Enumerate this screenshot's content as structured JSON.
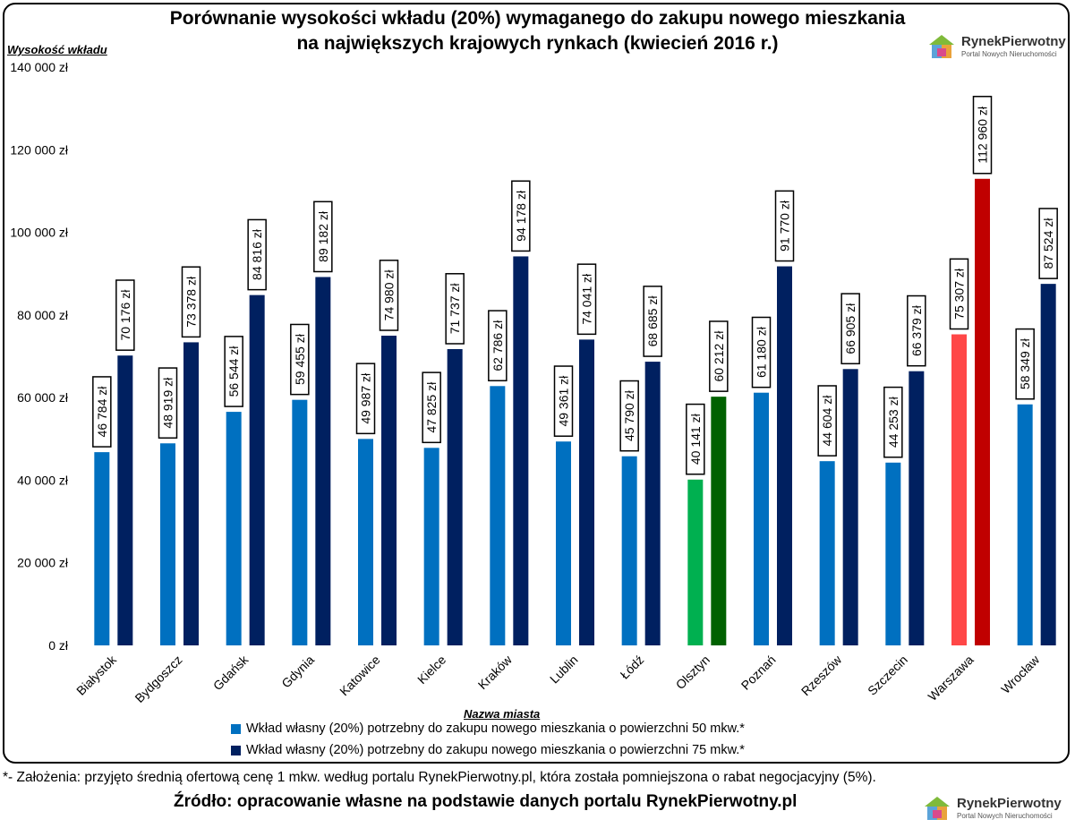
{
  "title_line1": "Porównanie wysokości wkładu (20%) wymaganego do zakupu nowego mieszkania",
  "title_line2": "na największych krajowych rynkach (kwiecień 2016 r.)",
  "footnote": "*- Założenia: przyjęto średnią ofertową cenę 1 mkw. według portalu RynekPierwotny.pl, która została pomniejszona o rabat negocjacyjny (5%).",
  "source": "Źródło: opracowanie własne na podstawie danych portalu RynekPierwotny.pl",
  "logo": {
    "name": "RynekPierwotny",
    "tagline": "Portal Nowych Nieruchomości",
    "icon": "house-icon"
  },
  "colors": {
    "series_50": "#0070C0",
    "series_75": "#002060",
    "olsztyn_50": "#00B050",
    "olsztyn_75": "#006100",
    "warszawa_50": "#FF4747",
    "warszawa_75": "#C00000"
  },
  "chart_data": {
    "type": "bar",
    "title": "Porównanie wysokości wkładu (20%) wymaganego do zakupu nowego mieszkania na największych krajowych rynkach (kwiecień 2016 r.)",
    "xlabel": "Nazwa miasta",
    "ylabel": "Wysokość wkładu",
    "ylim": [
      0,
      140000
    ],
    "yticks": [
      "0 zł",
      "20 000 zł",
      "40 000 zł",
      "60 000 zł",
      "80 000 zł",
      "100 000 zł",
      "120 000 zł",
      "140 000 zł"
    ],
    "grid": false,
    "legend_position": "bottom",
    "categories": [
      "Białystok",
      "Bydgoszcz",
      "Gdańsk",
      "Gdynia",
      "Katowice",
      "Kielce",
      "Kraków",
      "Lublin",
      "Łódź",
      "Olsztyn",
      "Poznań",
      "Rzeszów",
      "Szczecin",
      "Warszawa",
      "Wrocław"
    ],
    "series": [
      {
        "name": "Wkład własny (20%) potrzebny do zakupu nowego mieszkania o powierzchni 50 mkw.*",
        "values": [
          46784,
          48919,
          56544,
          59455,
          49987,
          47825,
          62786,
          49361,
          45790,
          40141,
          61180,
          44604,
          44253,
          75307,
          58349
        ],
        "labels": [
          "46 784 zł",
          "48 919 zł",
          "56 544 zł",
          "59 455 zł",
          "49 987 zł",
          "47 825 zł",
          "62 786 zł",
          "49 361 zł",
          "45 790 zł",
          "40 141 zł",
          "61 180 zł",
          "44 604 zł",
          "44 253 zł",
          "75 307 zł",
          "58 349 zł"
        ]
      },
      {
        "name": "Wkład własny (20%) potrzebny do zakupu nowego mieszkania o powierzchni 75 mkw.*",
        "values": [
          70176,
          73378,
          84816,
          89182,
          74980,
          71737,
          94178,
          74041,
          68685,
          60212,
          91770,
          66905,
          66379,
          112960,
          87524
        ],
        "labels": [
          "70 176 zł",
          "73 378 zł",
          "84 816 zł",
          "89 182 zł",
          "74 980 zł",
          "71 737 zł",
          "94 178 zł",
          "74 041 zł",
          "68 685 zł",
          "60 212 zł",
          "91 770 zł",
          "66 905 zł",
          "66 379 zł",
          "112 960 zł",
          "87 524 zł"
        ]
      }
    ]
  }
}
